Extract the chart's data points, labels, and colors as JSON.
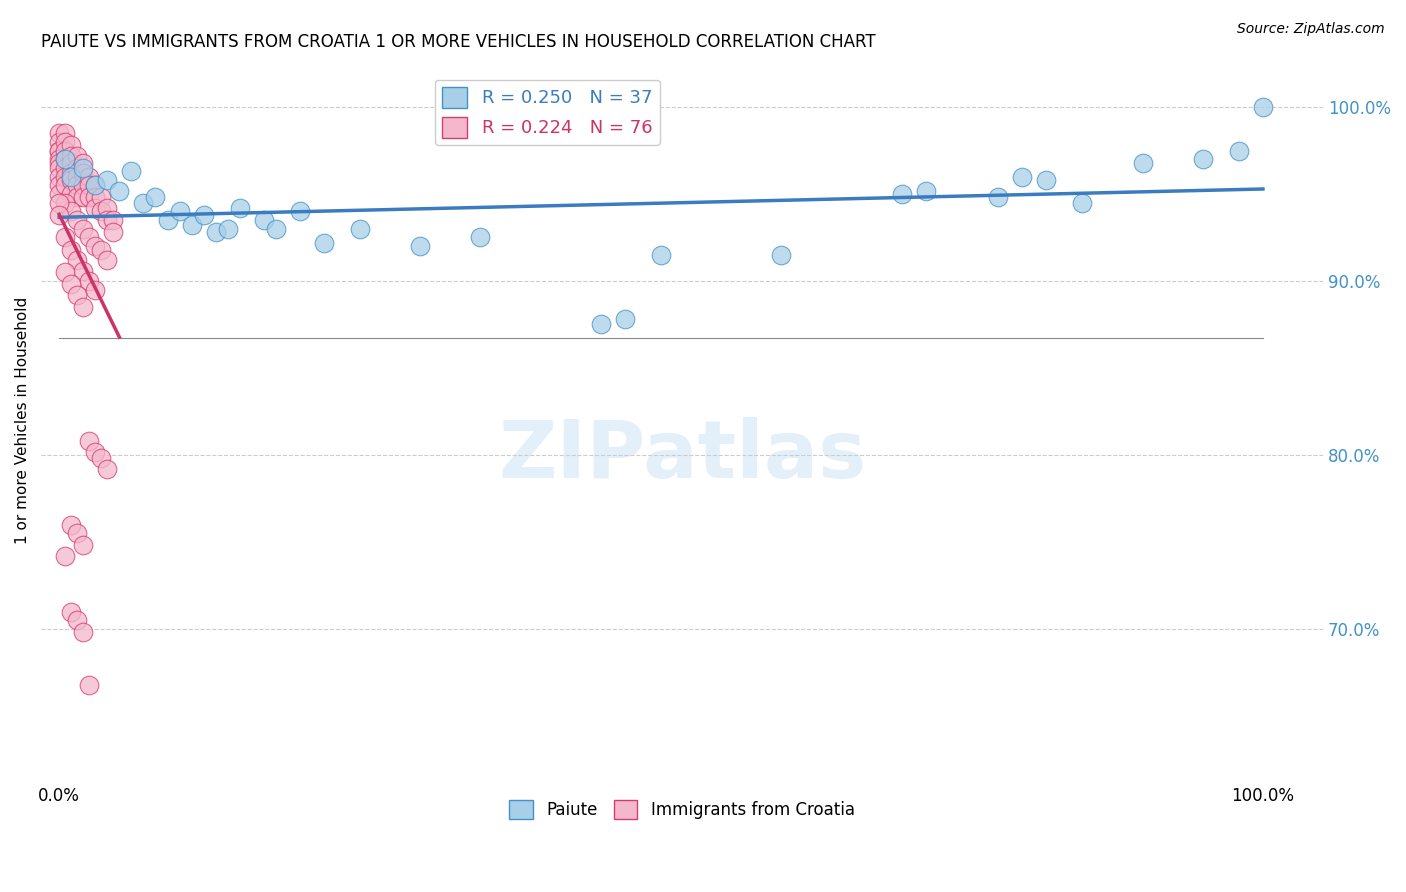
{
  "title": "PAIUTE VS IMMIGRANTS FROM CROATIA 1 OR MORE VEHICLES IN HOUSEHOLD CORRELATION CHART",
  "source": "Source: ZipAtlas.com",
  "ylabel": "1 or more Vehicles in Household",
  "legend_paiute": "Paiute",
  "legend_croatia": "Immigrants from Croatia",
  "R_paiute": 0.25,
  "N_paiute": 37,
  "R_croatia": 0.224,
  "N_croatia": 76,
  "color_paiute": "#a8cfe8",
  "color_croatia": "#f4b8cc",
  "edge_paiute": "#4292c6",
  "edge_croatia": "#d63a6e",
  "trendline_paiute": "#3a7cbf",
  "trendline_croatia": "#cc3366",
  "ytick_color": "#4292c6",
  "ytick_labels": [
    "100.0%",
    "90.0%",
    "80.0%",
    "70.0%"
  ],
  "ytick_values": [
    1.0,
    0.9,
    0.8,
    0.7
  ],
  "xlim": [
    -0.015,
    1.05
  ],
  "ylim": [
    0.615,
    1.025
  ],
  "paiute_x": [
    0.005,
    0.01,
    0.02,
    0.03,
    0.04,
    0.05,
    0.06,
    0.07,
    0.08,
    0.09,
    0.1,
    0.11,
    0.12,
    0.13,
    0.14,
    0.15,
    0.17,
    0.18,
    0.2,
    0.22,
    0.25,
    0.3,
    0.35,
    0.45,
    0.47,
    0.5,
    0.7,
    0.72,
    0.78,
    0.8,
    0.82,
    0.85,
    0.9,
    0.95,
    0.98,
    1.0,
    0.6
  ],
  "paiute_y": [
    0.97,
    0.96,
    0.965,
    0.955,
    0.958,
    0.952,
    0.963,
    0.945,
    0.948,
    0.935,
    0.94,
    0.932,
    0.938,
    0.928,
    0.93,
    0.942,
    0.935,
    0.93,
    0.94,
    0.922,
    0.93,
    0.92,
    0.925,
    0.875,
    0.878,
    0.915,
    0.95,
    0.952,
    0.948,
    0.96,
    0.958,
    0.945,
    0.968,
    0.97,
    0.975,
    1.0,
    0.915
  ],
  "croatia_x": [
    0.0,
    0.0,
    0.0,
    0.0,
    0.0,
    0.0,
    0.0,
    0.0,
    0.0,
    0.0,
    0.005,
    0.005,
    0.005,
    0.005,
    0.005,
    0.005,
    0.005,
    0.01,
    0.01,
    0.01,
    0.01,
    0.01,
    0.01,
    0.015,
    0.015,
    0.015,
    0.015,
    0.015,
    0.02,
    0.02,
    0.02,
    0.02,
    0.025,
    0.025,
    0.025,
    0.03,
    0.03,
    0.03,
    0.035,
    0.035,
    0.04,
    0.04,
    0.045,
    0.045,
    0.005,
    0.01,
    0.015,
    0.02,
    0.025,
    0.03,
    0.035,
    0.04,
    0.005,
    0.01,
    0.015,
    0.02,
    0.025,
    0.03,
    0.0,
    0.0,
    0.005,
    0.01,
    0.015,
    0.02,
    0.025,
    0.03,
    0.035,
    0.04,
    0.01,
    0.015,
    0.02,
    0.005,
    0.01,
    0.015,
    0.02,
    0.025
  ],
  "croatia_y": [
    0.985,
    0.98,
    0.975,
    0.975,
    0.97,
    0.968,
    0.965,
    0.96,
    0.955,
    0.95,
    0.985,
    0.98,
    0.975,
    0.97,
    0.965,
    0.96,
    0.955,
    0.978,
    0.972,
    0.968,
    0.962,
    0.958,
    0.95,
    0.972,
    0.965,
    0.96,
    0.955,
    0.948,
    0.968,
    0.962,
    0.955,
    0.948,
    0.96,
    0.955,
    0.948,
    0.955,
    0.948,
    0.942,
    0.948,
    0.94,
    0.942,
    0.935,
    0.935,
    0.928,
    0.945,
    0.94,
    0.935,
    0.93,
    0.925,
    0.92,
    0.918,
    0.912,
    0.925,
    0.918,
    0.912,
    0.906,
    0.9,
    0.895,
    0.945,
    0.938,
    0.905,
    0.898,
    0.892,
    0.885,
    0.808,
    0.802,
    0.798,
    0.792,
    0.76,
    0.755,
    0.748,
    0.742,
    0.71,
    0.705,
    0.698,
    0.668
  ]
}
